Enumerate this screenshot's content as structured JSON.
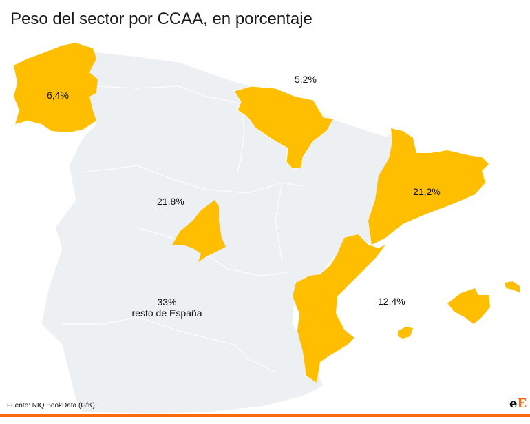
{
  "title": "Peso del sector por CCAA, en porcentaje",
  "colors": {
    "highlight": "#ffbf00",
    "rest": "#edf0f3",
    "border": "#ffffff",
    "accent": "#ff6a13"
  },
  "regions": [
    {
      "name": "Galicia",
      "value_label": "6,4%"
    },
    {
      "name": "País Vasco y Navarra",
      "value_label": "5,2%"
    },
    {
      "name": "Cataluña",
      "value_label": "21,2%"
    },
    {
      "name": "Madrid",
      "value_label": "21,8%"
    },
    {
      "name": "Comunidad Valenciana y Baleares",
      "value_label": "12,4%"
    },
    {
      "name": "Resto de España",
      "value_label": "33%",
      "sublabel": "resto de España"
    }
  ],
  "source": "Fuente: NIQ BookData (GfK).",
  "logo": {
    "part1": "e",
    "part2": "E"
  }
}
